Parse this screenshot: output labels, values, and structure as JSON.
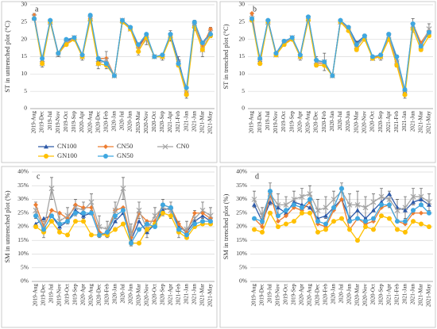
{
  "chart_data": [
    {
      "type": "line",
      "panel_label": "a",
      "y_label": "ST in untrenched plot (°C)",
      "categories": [
        "2019-Aug",
        "2019-Dec",
        "2019-Jul",
        "2019-Nov",
        "2019-Oct",
        "2019-Sep",
        "2020-Apr",
        "2020-Aug",
        "2020-Dec",
        "2020-Feb",
        "2020-Jan",
        "2020-Jul",
        "2020-Jun",
        "2020-Mar",
        "2020-Nov",
        "2020-Oct",
        "2020-Sep",
        "2021-Apr",
        "2021-Feb",
        "2021-Jan",
        "2021-Jun",
        "2021-Mar",
        "2021-May"
      ],
      "ylim": [
        0,
        30
      ],
      "yticks": [
        0,
        5,
        10,
        15,
        20,
        25,
        30
      ],
      "grid": true,
      "legend": "bottom",
      "series": [
        {
          "name": "CN100",
          "color": "#2e5aa8",
          "marker": "triangle",
          "values": [
            26,
            14,
            25.5,
            16,
            19.5,
            20.5,
            15.5,
            26.5,
            14,
            13.5,
            9.5,
            25.5,
            23.5,
            18,
            21,
            15,
            15,
            21.5,
            14,
            5,
            24.5,
            19,
            22
          ]
        },
        {
          "name": "CN50",
          "color": "#ed7d31",
          "marker": "diamond",
          "values": [
            27,
            13.5,
            25.5,
            16,
            19,
            20,
            15,
            26,
            14.5,
            14.5,
            9.5,
            25,
            23,
            17.5,
            21,
            15,
            15,
            21,
            13,
            4.5,
            25,
            18,
            23
          ]
        },
        {
          "name": "CN0",
          "color": "#a5a5a5",
          "marker": "x",
          "values": [
            26.5,
            13,
            25,
            15.5,
            19,
            20.5,
            15,
            26,
            13,
            14,
            9.5,
            25.5,
            23,
            17,
            20,
            15,
            15,
            21,
            13.5,
            4.5,
            24,
            17,
            22
          ],
          "errors": [
            1,
            1,
            0.5,
            0.5,
            1,
            0.5,
            1,
            0.5,
            1.5,
            2.5,
            0.3,
            0.5,
            0.5,
            1.5,
            1.5,
            0.5,
            1,
            1.5,
            1.5,
            1.5,
            1.5,
            2,
            1.5
          ]
        },
        {
          "name": "GN100",
          "color": "#ffc000",
          "marker": "circle",
          "values": [
            26,
            13,
            25,
            16,
            18.5,
            20,
            15,
            25.5,
            13,
            12.5,
            9.5,
            25,
            23,
            16.5,
            20.5,
            15,
            15,
            20.5,
            12.5,
            4,
            23.5,
            17,
            21
          ]
        },
        {
          "name": "GN50",
          "color": "#3fa7e0",
          "marker": "circle",
          "values": [
            26,
            14.5,
            25.5,
            16,
            20,
            20.5,
            15.5,
            27,
            14.5,
            13,
            9.5,
            25.5,
            23.5,
            18.5,
            21.5,
            15,
            15.5,
            21.5,
            13,
            6,
            25,
            19,
            21.5
          ]
        }
      ]
    },
    {
      "type": "line",
      "panel_label": "b",
      "y_label": "ST in trenched plot (°C)",
      "categories": [
        "2019-Aug",
        "2019-Dec",
        "2019-Jul",
        "2019-Nov",
        "2019-Oct",
        "2019-Sep",
        "2020-Apr",
        "2020-Aug",
        "2020-Dec",
        "2020-Feb",
        "2020-Jan",
        "2020-Jul",
        "2020-Jun",
        "2020-Mar",
        "2020-Nov",
        "2020-Oct",
        "2020-Sep",
        "2021-Apr",
        "2021-Feb",
        "2021-Jan",
        "2021-Jun",
        "2021-Mar",
        "2021-May"
      ],
      "ylim": [
        0,
        30
      ],
      "yticks": [
        0,
        5,
        10,
        15,
        20,
        25,
        30
      ],
      "grid": true,
      "series": [
        {
          "color": "#2e5aa8",
          "marker": "triangle",
          "values": [
            26,
            14,
            25.5,
            16,
            19.5,
            20.5,
            15.5,
            26.5,
            13.5,
            13.5,
            9.5,
            25.5,
            23.5,
            19,
            21,
            14.5,
            15,
            21.5,
            14,
            5,
            24,
            19,
            22
          ]
        },
        {
          "color": "#ed7d31",
          "marker": "diamond",
          "values": [
            27.5,
            13,
            25.5,
            16,
            19,
            20,
            15,
            26.5,
            13,
            13,
            9.5,
            25.5,
            23,
            18,
            21,
            14.5,
            15.5,
            20,
            13.5,
            5,
            24.5,
            19,
            22.5
          ]
        },
        {
          "color": "#a5a5a5",
          "marker": "x",
          "values": [
            26,
            13.5,
            25,
            15.5,
            19,
            20.5,
            15,
            26,
            13.5,
            13.5,
            9.5,
            25,
            23,
            18,
            20.5,
            14.5,
            15,
            21,
            13.5,
            4.5,
            24,
            18,
            23
          ],
          "errors": [
            1,
            1,
            0.5,
            0.5,
            1,
            0.5,
            1,
            0.5,
            1.5,
            2.5,
            0.3,
            0.5,
            0.5,
            1.5,
            1,
            0.5,
            1,
            1,
            1.5,
            1.5,
            2,
            1.5,
            1.5
          ]
        },
        {
          "color": "#ffc000",
          "marker": "circle",
          "values": [
            25.5,
            13,
            25,
            15.5,
            18.5,
            20,
            15,
            25.5,
            12.5,
            12.5,
            9.5,
            25,
            22.5,
            17,
            20,
            14.5,
            15,
            20,
            12.5,
            4,
            23,
            17,
            21
          ]
        },
        {
          "color": "#3fa7e0",
          "marker": "circle",
          "values": [
            26,
            14.5,
            25.5,
            16,
            19.5,
            20.5,
            15.5,
            26.5,
            14,
            13.5,
            9.5,
            25.5,
            23.5,
            18.5,
            21,
            15,
            15.5,
            21.5,
            15,
            5.5,
            24.5,
            18,
            22
          ]
        }
      ]
    },
    {
      "type": "line",
      "panel_label": "c",
      "y_label": "SM in untrenched plot (%)",
      "categories": [
        "2019-Aug",
        "2019-Dec",
        "2019-Jul",
        "2019-Nov",
        "2019-Oct",
        "2019-Sep",
        "2020-Apr",
        "2020-Aug",
        "2020-Dec",
        "2020-Feb",
        "2020-Jan",
        "2020-Jul",
        "2020-Jun",
        "2020-Mar",
        "2020-Nov",
        "2020-Oct",
        "2020-Sep",
        "2021-Apr",
        "2021-Feb",
        "2021-Jan",
        "2021-Jun",
        "2021-Mar",
        "2021-May"
      ],
      "ylim": [
        0,
        40
      ],
      "yticks": [
        {
          "value": 0,
          "label": "0%"
        },
        {
          "value": 5,
          "label": "5%"
        },
        {
          "value": 10,
          "label": "10%"
        },
        {
          "value": 15,
          "label": "15%"
        },
        {
          "value": 20,
          "label": "20%"
        },
        {
          "value": 25,
          "label": "25%"
        },
        {
          "value": 30,
          "label": "30%"
        },
        {
          "value": 35,
          "label": "35%"
        },
        {
          "value": 40,
          "label": "40%"
        }
      ],
      "grid": true,
      "series": [
        {
          "color": "#2e5aa8",
          "marker": "triangle",
          "values": [
            21,
            23,
            24,
            20,
            22,
            26,
            24,
            25,
            17,
            17,
            22,
            25,
            15,
            22,
            18,
            21,
            26,
            27,
            20,
            18,
            22,
            24,
            22
          ]
        },
        {
          "color": "#ed7d31",
          "marker": "diamond",
          "values": [
            28,
            20,
            26,
            25,
            23,
            28,
            27,
            27,
            18,
            17,
            26,
            27,
            16,
            25,
            22,
            22,
            28,
            27,
            21,
            18,
            25,
            25,
            23
          ]
        },
        {
          "color": "#a5a5a5",
          "marker": "x",
          "values": [
            26,
            19,
            34,
            22,
            24,
            27,
            26,
            29,
            20,
            19,
            26,
            34,
            17,
            26,
            19,
            24,
            27,
            26,
            19,
            19,
            23,
            26,
            24
          ],
          "errors": [
            3,
            3,
            4,
            3,
            3,
            3,
            3,
            3,
            4,
            3,
            3,
            4,
            4,
            3,
            3,
            3,
            3,
            3,
            3,
            3,
            3,
            3,
            3
          ]
        },
        {
          "color": "#ffc000",
          "marker": "circle",
          "values": [
            20,
            18,
            22,
            18,
            17,
            22,
            22,
            17,
            17,
            17,
            19,
            21,
            14,
            14,
            19,
            21,
            25,
            24,
            18,
            16,
            20,
            21,
            21
          ]
        },
        {
          "color": "#3fa7e0",
          "marker": "circle",
          "values": [
            24,
            19,
            24,
            21,
            22,
            25,
            25,
            25,
            17,
            18,
            24,
            26,
            14,
            19,
            21,
            20,
            28,
            27,
            19,
            17,
            21,
            22,
            22
          ]
        }
      ]
    },
    {
      "type": "line",
      "panel_label": "d",
      "y_label": "SM in trenched plot (%)",
      "categories": [
        "2019-Aug",
        "2019-Dec",
        "2019-Jul",
        "2019-Nov",
        "2019-Oct",
        "2019-Sep",
        "2020-Apr",
        "2020-Aug",
        "2020-Dec",
        "2020-Feb",
        "2020-Jan",
        "2020-Jul",
        "2020-Jun",
        "2020-Mar",
        "2020-Nov",
        "2020-Oct",
        "2020-Sep",
        "2021-Apr",
        "2021-Feb",
        "2021-Jan",
        "2021-Jun",
        "2021-Mar",
        "2021-May"
      ],
      "ylim": [
        0,
        40
      ],
      "yticks": [
        {
          "value": 0,
          "label": "0%"
        },
        {
          "value": 5,
          "label": "5%"
        },
        {
          "value": 10,
          "label": "10%"
        },
        {
          "value": 15,
          "label": "15%"
        },
        {
          "value": 20,
          "label": "20%"
        },
        {
          "value": 25,
          "label": "25%"
        },
        {
          "value": 30,
          "label": "30%"
        },
        {
          "value": 35,
          "label": "35%"
        },
        {
          "value": 40,
          "label": "40%"
        }
      ],
      "grid": true,
      "series": [
        {
          "color": "#2e5aa8",
          "marker": "triangle",
          "values": [
            28,
            22,
            29,
            27,
            25,
            29,
            28,
            27,
            23,
            24,
            27,
            30,
            23,
            26,
            23,
            26,
            29,
            32,
            27,
            26,
            29,
            30,
            28
          ]
        },
        {
          "color": "#ed7d31",
          "marker": "diamond",
          "values": [
            23,
            20,
            32,
            22,
            24,
            27,
            26,
            29,
            21,
            20,
            26,
            30,
            19,
            23,
            21,
            22,
            27,
            28,
            22,
            21,
            25,
            25,
            25
          ]
        },
        {
          "color": "#a5a5a5",
          "marker": "x",
          "values": [
            30,
            24,
            32,
            28,
            28,
            30,
            31,
            32,
            26,
            27,
            30,
            33,
            28,
            28,
            27,
            29,
            31,
            30,
            26,
            27,
            31,
            31,
            29
          ],
          "errors": [
            3,
            3,
            4,
            4,
            3,
            3,
            3,
            3,
            4,
            4,
            3,
            3,
            4,
            5,
            4,
            3,
            3,
            3,
            4,
            4,
            3,
            3,
            3
          ]
        },
        {
          "color": "#ffc000",
          "marker": "circle",
          "values": [
            19,
            18,
            25,
            20,
            21,
            22,
            25,
            25,
            18,
            19,
            22,
            23,
            19,
            15,
            20,
            19,
            24,
            23,
            19,
            18,
            22,
            21,
            20
          ]
        },
        {
          "color": "#3fa7e0",
          "marker": "circle",
          "values": [
            23,
            22,
            33,
            24,
            26,
            28,
            27,
            30,
            22,
            21,
            27,
            34,
            22,
            23,
            22,
            23,
            28,
            28,
            22,
            22,
            26,
            28,
            25
          ]
        }
      ]
    }
  ]
}
